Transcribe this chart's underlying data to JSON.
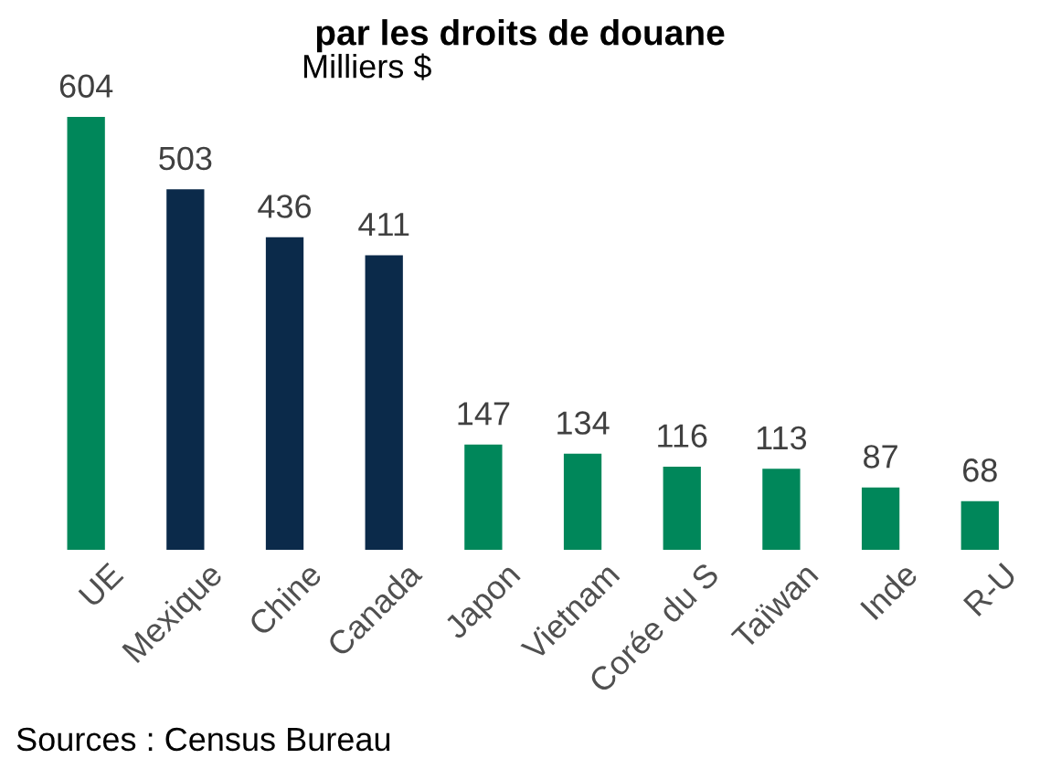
{
  "chart_data": {
    "type": "bar",
    "title": "par les droits de douane",
    "categories": [
      "UE",
      "Mexique",
      "Chine",
      "Canada",
      "Japon",
      "Vietnam",
      "Corée du S",
      "Taïwan",
      "Inde",
      "R-U"
    ],
    "values": [
      604,
      503,
      436,
      411,
      147,
      134,
      116,
      113,
      87,
      68
    ],
    "colors": [
      "#00875a",
      "#0b2a4a",
      "#0b2a4a",
      "#0b2a4a",
      "#00875a",
      "#00875a",
      "#00875a",
      "#00875a",
      "#00875a",
      "#00875a"
    ],
    "data_labels": true,
    "annotations": [
      "Milliers $",
      "Sources : Census Bureau"
    ]
  }
}
